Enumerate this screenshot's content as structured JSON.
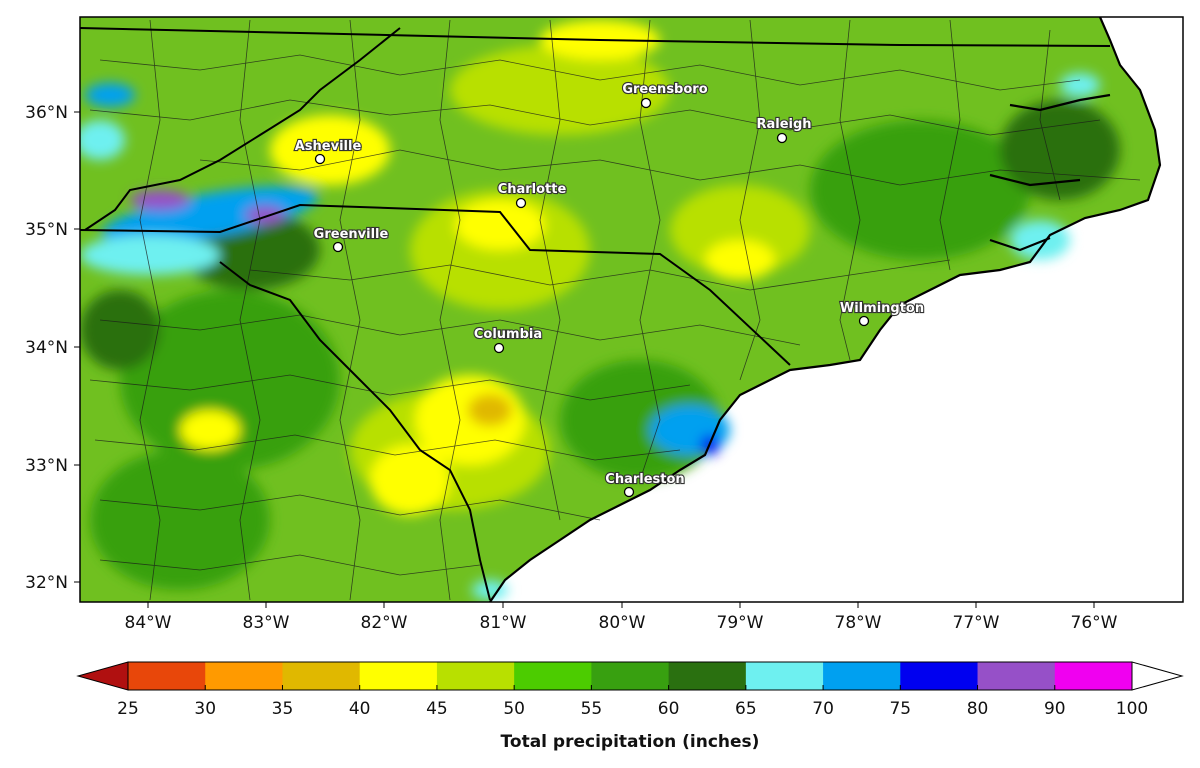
{
  "map": {
    "lon_labels": [
      "84°W",
      "83°W",
      "82°W",
      "81°W",
      "80°W",
      "79°W",
      "78°W",
      "77°W",
      "76°W"
    ],
    "lat_labels": [
      "36°N",
      "35°N",
      "34°N",
      "33°N",
      "32°N"
    ],
    "cities": [
      {
        "name": "Asheville"
      },
      {
        "name": "Greensboro"
      },
      {
        "name": "Raleigh"
      },
      {
        "name": "Charlotte"
      },
      {
        "name": "Greenville"
      },
      {
        "name": "Columbia"
      },
      {
        "name": "Wilmington"
      },
      {
        "name": "Charleston"
      }
    ]
  },
  "colorbar": {
    "title": "Total precipitation (inches)",
    "tick_labels": [
      "25",
      "30",
      "35",
      "40",
      "45",
      "50",
      "55",
      "60",
      "65",
      "70",
      "75",
      "80",
      "90",
      "100"
    ],
    "colors": [
      "#e8470a",
      "#ff9a00",
      "#e0b800",
      "#ffff00",
      "#b8e000",
      "#4ccc00",
      "#38a010",
      "#2a7010",
      "#6ef0f0",
      "#00a0f0",
      "#0000f0",
      "#9650c8",
      "#f000f0"
    ],
    "under_color": "#b01010",
    "over_color": "#ffffff"
  },
  "colors": {
    "base_fill": "#70c020",
    "state_border": "#000000",
    "county_border": "#1a1a1a"
  }
}
